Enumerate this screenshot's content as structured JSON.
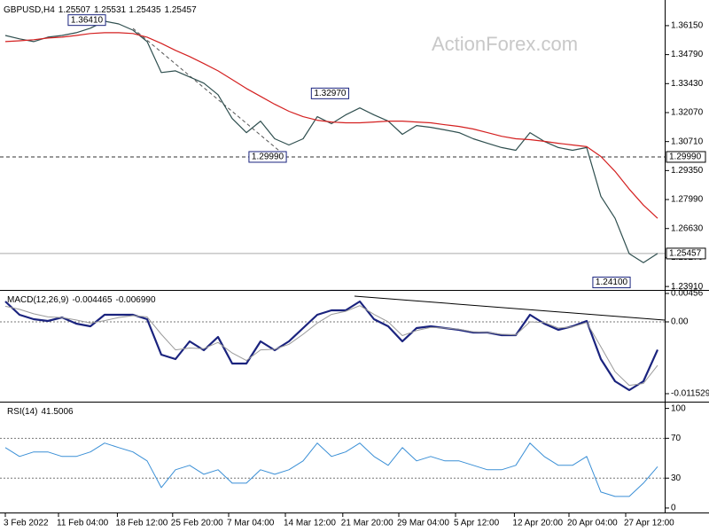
{
  "chart_data": [
    {
      "type": "line",
      "title": "GBPUSD,H4",
      "ohlc": [
        "1.25507",
        "1.25531",
        "1.25435",
        "1.25457"
      ],
      "watermark": "ActionForex.com",
      "x": [
        0,
        1,
        2,
        3,
        4,
        5,
        6,
        7,
        8,
        9,
        10,
        11,
        12,
        13,
        14,
        15,
        16,
        17,
        18,
        19,
        20,
        21,
        22,
        23,
        24,
        25,
        26,
        27,
        28,
        29,
        30,
        31,
        32,
        33,
        34,
        35,
        36,
        37,
        38,
        39,
        40,
        41,
        42,
        43,
        44,
        45,
        46
      ],
      "xlim": [
        0,
        46
      ],
      "xticks": [
        {
          "value": 0,
          "label": "3 Feb 2022"
        },
        {
          "value": 3.75,
          "label": "11 Feb 04:00"
        },
        {
          "value": 7.9,
          "label": "18 Feb 12:00"
        },
        {
          "value": 11.8,
          "label": "25 Feb 20:00"
        },
        {
          "value": 15.75,
          "label": "7 Mar 04:00"
        },
        {
          "value": 19.75,
          "label": "14 Mar 12:00"
        },
        {
          "value": 23.8,
          "label": "21 Mar 20:00"
        },
        {
          "value": 27.75,
          "label": "29 Mar 04:00"
        },
        {
          "value": 31.75,
          "label": "5 Apr 12:00"
        },
        {
          "value": 35.9,
          "label": "12 Apr 20:00"
        },
        {
          "value": 39.75,
          "label": "20 Apr 04:00"
        },
        {
          "value": 43.75,
          "label": "27 Apr 12:00"
        }
      ],
      "ylim": [
        1.2379,
        1.3727
      ],
      "yticks": [
        {
          "value": 1.3615,
          "label": "1.36150"
        },
        {
          "value": 1.3479,
          "label": "1.34790"
        },
        {
          "value": 1.3343,
          "label": "1.33430"
        },
        {
          "value": 1.3207,
          "label": "1.32070"
        },
        {
          "value": 1.3071,
          "label": "1.30710"
        },
        {
          "value": 1.2935,
          "label": "1.29350"
        },
        {
          "value": 1.2799,
          "label": "1.27990"
        },
        {
          "value": 1.2663,
          "label": "1.26630"
        },
        {
          "value": 1.2527,
          "label": "1.25270"
        },
        {
          "value": 1.2391,
          "label": "1.23910"
        }
      ],
      "series": [
        {
          "color": "#2f4f4f",
          "values": [
            1.3569,
            1.3553,
            1.354,
            1.3561,
            1.3569,
            1.3582,
            1.3603,
            1.3636,
            1.3623,
            1.3594,
            1.354,
            1.3395,
            1.3403,
            1.3374,
            1.3345,
            1.3291,
            1.3179,
            1.3113,
            1.3167,
            1.3084,
            1.3055,
            1.3084,
            1.3188,
            1.3155,
            1.3196,
            1.3229,
            1.3196,
            1.3167,
            1.3105,
            1.3146,
            1.3138,
            1.3126,
            1.3113,
            1.3084,
            1.3063,
            1.3043,
            1.303,
            1.3113,
            1.3072,
            1.3043,
            1.303,
            1.3043,
            1.2814,
            1.2711,
            1.2545,
            1.2503,
            1.2546
          ]
        },
        {
          "color": "#d42020",
          "values": [
            1.354,
            1.3544,
            1.3549,
            1.3557,
            1.3561,
            1.3569,
            1.3578,
            1.3582,
            1.3582,
            1.3578,
            1.3561,
            1.3532,
            1.3499,
            1.347,
            1.3437,
            1.3403,
            1.3362,
            1.332,
            1.3283,
            1.3246,
            1.3213,
            1.3188,
            1.3171,
            1.3163,
            1.3159,
            1.3159,
            1.3163,
            1.3167,
            1.3167,
            1.3163,
            1.3159,
            1.315,
            1.3142,
            1.313,
            1.3113,
            1.3096,
            1.3084,
            1.308,
            1.3072,
            1.3063,
            1.3055,
            1.3047,
            1.3001,
            1.2931,
            1.2848,
            1.2773,
            1.2711
          ]
        }
      ],
      "hlines": [
        {
          "value": 1.2999,
          "label": "1.29990",
          "style": "dashed"
        },
        {
          "value": 1.25457,
          "label": "1.25457",
          "style": "solid"
        }
      ],
      "annotations": [
        {
          "x": 5.75,
          "y": 1.3641,
          "label": "1.36410"
        },
        {
          "x": 22.9,
          "y": 1.3297,
          "label": "1.32970"
        },
        {
          "x": 18.5,
          "y": 1.2999,
          "label": "1.29990"
        },
        {
          "x": 42.75,
          "y": 1.241,
          "label": "1.24100"
        }
      ]
    },
    {
      "type": "line",
      "title": "MACD(12,26,9)",
      "indicator_values": [
        "-0.004465",
        "-0.006990"
      ],
      "ylim": [
        -0.01267,
        0.00484
      ],
      "yticks": [
        {
          "value": 0.00456,
          "label": "0.00456"
        },
        {
          "value": 0,
          "label": "0.00"
        },
        {
          "value": -0.011529,
          "label": "-0.011529"
        }
      ],
      "levels": [
        0
      ],
      "series": [
        {
          "color": "#1a237e",
          "width": 2.2,
          "values": [
            0.00327,
            0.00114,
            0.00043,
            0.00014,
            0.00071,
            -0.00028,
            -0.00071,
            0.00114,
            0.00114,
            0.00114,
            0.00043,
            -0.00527,
            -0.00598,
            -0.00313,
            -0.00455,
            -0.00242,
            -0.00669,
            -0.00669,
            -0.00313,
            -0.00455,
            -0.00313,
            -0.001,
            0.00114,
            0.00185,
            0.00185,
            0.00327,
            0.00043,
            -0.00071,
            -0.00313,
            -0.001,
            -0.00071,
            -0.001,
            -0.00128,
            -0.00171,
            -0.00171,
            -0.00213,
            -0.00213,
            0.00114,
            -0.00028,
            -0.00128,
            -0.00071,
            0.00014,
            -0.00598,
            -0.00954,
            -0.01096,
            -0.00954,
            -0.004465
          ]
        },
        {
          "color": "#9a9a9a",
          "width": 1,
          "values": [
            0.0025,
            0.002,
            0.0013,
            0.0008,
            0.0007,
            0.0003,
            -0.0002,
            0.0002,
            0.0007,
            0.001,
            0.0008,
            -0.002,
            -0.0045,
            -0.0042,
            -0.0043,
            -0.0033,
            -0.005,
            -0.0062,
            -0.0045,
            -0.0044,
            -0.0036,
            -0.002,
            -0.0002,
            0.0012,
            0.0017,
            0.0026,
            0.0012,
            0,
            -0.0022,
            -0.0014,
            -0.0009,
            -0.001,
            -0.0012,
            -0.0016,
            -0.0017,
            -0.002,
            -0.0021,
            0,
            -0.0001,
            -0.001,
            -0.0008,
            -0.0001,
            -0.004,
            -0.008,
            -0.0102,
            -0.0099,
            -0.00699
          ]
        }
      ]
    },
    {
      "type": "line",
      "title": "RSI(14)",
      "indicator_values": [
        "41.5006"
      ],
      "ylim": [
        -4.5,
        105
      ],
      "yticks": [
        100,
        70,
        30,
        0
      ],
      "levels": [
        70,
        30
      ],
      "series": [
        {
          "color": "#3a8fd6",
          "width": 1,
          "values": [
            60.7,
            51.8,
            56.3,
            56.3,
            51.8,
            51.8,
            56.3,
            65.2,
            60.7,
            56.3,
            47.3,
            20.5,
            38.4,
            42.9,
            33.9,
            38.4,
            25,
            25,
            38.4,
            33.9,
            38.4,
            47.3,
            65.2,
            51.8,
            56.3,
            65.2,
            51.8,
            42.9,
            60.7,
            47.3,
            51.8,
            47.3,
            47.3,
            42.9,
            38.4,
            38.4,
            42.9,
            65.2,
            51.8,
            42.9,
            42.9,
            51.8,
            16.1,
            11.6,
            11.6,
            25,
            41.5006
          ]
        }
      ]
    }
  ]
}
